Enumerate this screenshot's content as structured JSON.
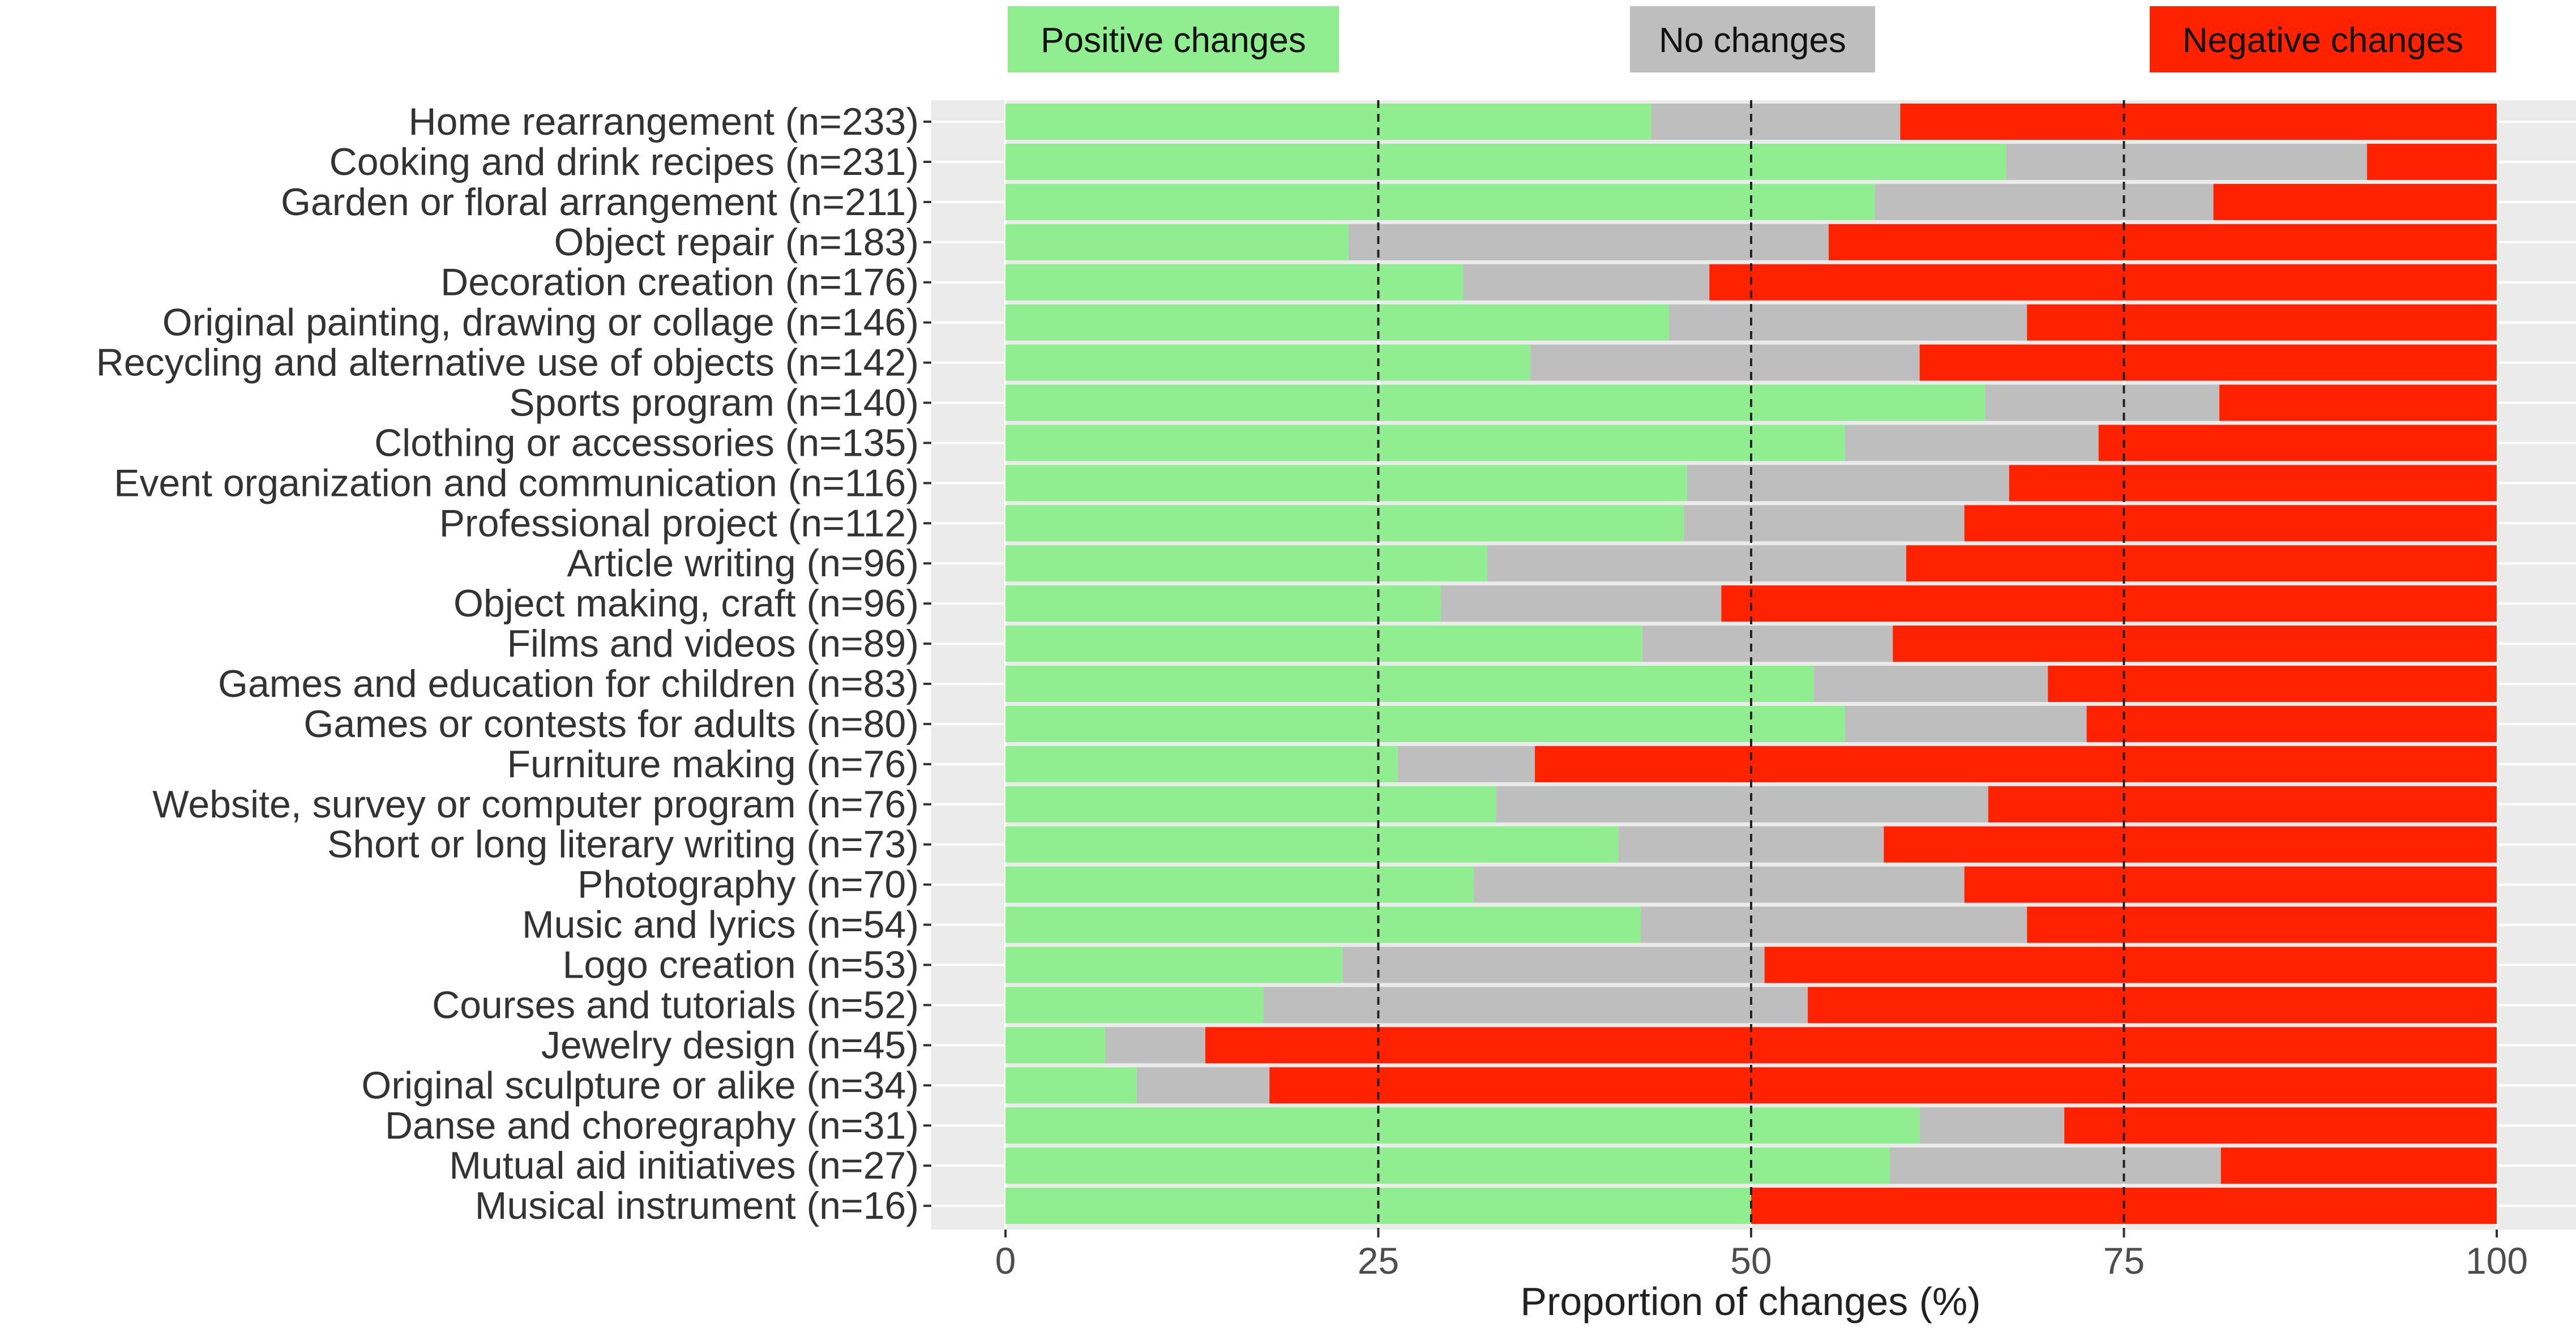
{
  "chart_data": {
    "type": "bar",
    "orientation": "horizontal",
    "stacked": true,
    "xlabel": "Proportion of changes (%)",
    "ylabel": "",
    "xlim": [
      0,
      100
    ],
    "x_ticks": [
      "0",
      "25",
      "50",
      "75",
      "100"
    ],
    "x_tick_values": [
      0,
      25,
      50,
      75,
      100
    ],
    "reference_lines": [
      25,
      50,
      75
    ],
    "legend": {
      "placement": "top",
      "entries": [
        {
          "label": "Positive changes",
          "color": "#90ee90"
        },
        {
          "label": "No changes",
          "color": "#bebebe"
        },
        {
          "label": "Negative changes",
          "color": "#ff2200"
        }
      ]
    },
    "colors": {
      "positive": "#90ee90",
      "none": "#bebebe",
      "negative": "#ff2200",
      "panel": "#ebebeb"
    },
    "categories": [
      "Home rearrangement (n=233)",
      "Cooking and drink recipes (n=231)",
      "Garden or floral arrangement (n=211)",
      "Object repair (n=183)",
      "Decoration creation (n=176)",
      "Original painting, drawing or collage (n=146)",
      "Recycling and alternative use of objects (n=142)",
      "Sports program (n=140)",
      "Clothing or accessories (n=135)",
      "Event organization and communication (n=116)",
      "Professional project (n=112)",
      "Article writing (n=96)",
      "Object making, craft (n=96)",
      "Films and videos (n=89)",
      "Games and education for children (n=83)",
      "Games or contests for adults (n=80)",
      "Furniture making (n=76)",
      "Website, survey or computer program (n=76)",
      "Short or long literary writing (n=73)",
      "Photography (n=70)",
      "Music and lyrics (n=54)",
      "Logo creation (n=53)",
      "Courses and tutorials (n=52)",
      "Jewelry design (n=45)",
      "Original sculpture or alike (n=34)",
      "Danse and choregraphy (n=31)",
      "Mutual aid initiatives (n=27)",
      "Musical instrument (n=16)"
    ],
    "series": [
      {
        "name": "Positive changes",
        "values": [
          43.3,
          67.1,
          58.3,
          23.0,
          30.7,
          44.5,
          35.2,
          65.7,
          56.3,
          45.7,
          45.5,
          32.3,
          29.2,
          42.7,
          54.2,
          56.3,
          26.3,
          32.9,
          41.1,
          31.4,
          42.6,
          22.6,
          17.3,
          6.7,
          8.8,
          61.3,
          59.3,
          50.0
        ]
      },
      {
        "name": "No changes",
        "values": [
          16.7,
          24.2,
          22.7,
          32.2,
          16.5,
          24.0,
          26.1,
          15.7,
          17.0,
          21.6,
          18.8,
          28.1,
          18.8,
          16.8,
          15.7,
          16.2,
          9.2,
          33.0,
          17.8,
          32.9,
          25.9,
          28.3,
          36.5,
          6.7,
          8.9,
          9.7,
          22.2,
          0.0
        ]
      },
      {
        "name": "Negative changes",
        "values": [
          40.0,
          8.7,
          19.0,
          44.8,
          52.8,
          31.5,
          38.7,
          18.6,
          26.7,
          32.7,
          35.7,
          39.6,
          52.0,
          40.5,
          30.1,
          27.5,
          64.5,
          34.1,
          41.1,
          35.7,
          31.5,
          49.1,
          46.2,
          86.6,
          82.3,
          29.0,
          18.5,
          50.0
        ]
      }
    ]
  }
}
